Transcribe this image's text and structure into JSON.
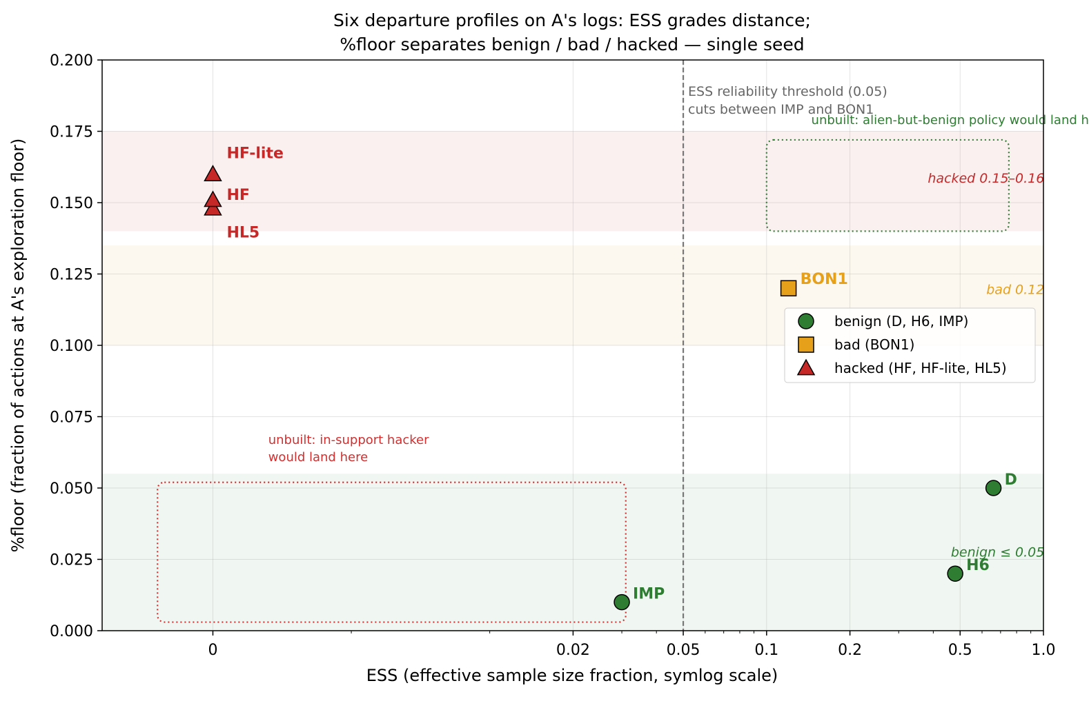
{
  "chart_data": {
    "type": "scatter",
    "title_line1": "Six departure profiles on A's logs: ESS grades distance;",
    "title_line2": "%floor separates benign / bad / hacked — single seed",
    "xlabel": "ESS  (effective sample size fraction, symlog scale)",
    "ylabel": "%floor  (fraction of actions at A's exploration floor)",
    "x_scale": "symlog",
    "x_linthresh": 0.01,
    "xlim": [
      -0.004,
      1.0
    ],
    "ylim": [
      0,
      0.2
    ],
    "grid": true,
    "x_ticks": [
      {
        "value": 0,
        "label": "0"
      },
      {
        "value": 0.02,
        "label": "0.02"
      },
      {
        "value": 0.05,
        "label": "0.05"
      },
      {
        "value": 0.1,
        "label": "0.1"
      },
      {
        "value": 0.2,
        "label": "0.2"
      },
      {
        "value": 0.5,
        "label": "0.5"
      },
      {
        "value": 1.0,
        "label": "1.0"
      }
    ],
    "x_minor_ticks": [
      0.005,
      0.01,
      0.03,
      0.04,
      0.06,
      0.07,
      0.08,
      0.09,
      0.3,
      0.4,
      0.6,
      0.7,
      0.8,
      0.9
    ],
    "y_ticks": [
      {
        "value": 0,
        "label": "0.000"
      },
      {
        "value": 0.025,
        "label": "0.025"
      },
      {
        "value": 0.05,
        "label": "0.050"
      },
      {
        "value": 0.075,
        "label": "0.075"
      },
      {
        "value": 0.1,
        "label": "0.100"
      },
      {
        "value": 0.125,
        "label": "0.125"
      },
      {
        "value": 0.15,
        "label": "0.150"
      },
      {
        "value": 0.175,
        "label": "0.175"
      },
      {
        "value": 0.2,
        "label": "0.200"
      }
    ],
    "bands": [
      {
        "name": "benign",
        "y0": 0,
        "y1": 0.055,
        "color": "#2e7d32",
        "opacity": 0.07,
        "label": "benign ≤ 0.05",
        "label_at": [
          0.985,
          0.026
        ],
        "label_color": "#2e7d32"
      },
      {
        "name": "bad",
        "y0": 0.1,
        "y1": 0.135,
        "color": "#e6a01a",
        "opacity": 0.07,
        "label": "bad 0.12",
        "label_at": [
          0.985,
          0.118
        ],
        "label_color": "#e6a01a"
      },
      {
        "name": "hacked",
        "y0": 0.14,
        "y1": 0.175,
        "color": "#c62828",
        "opacity": 0.07,
        "label": "hacked 0.15–0.16",
        "label_at": [
          0.985,
          0.157
        ],
        "label_color": "#c62828"
      }
    ],
    "threshold": {
      "x": 0.05,
      "label_line1": "ESS reliability threshold (0.05)",
      "label_line2": "cuts between IMP and BON1",
      "color": "#777777"
    },
    "regions": [
      {
        "name": "in-support-hacker",
        "x0": -0.002,
        "x1": 0.031,
        "y0": 0.003,
        "y1": 0.052,
        "color": "#d32f2f",
        "label_line1": "unbuilt: in-support hacker",
        "label_line2": "would land here",
        "label_at": [
          0.002,
          0.0655
        ]
      },
      {
        "name": "alien-but-benign",
        "x0": 0.1,
        "x1": 0.75,
        "y0": 0.14,
        "y1": 0.172,
        "color": "#2e7d32",
        "label_line1": "unbuilt: alien-but-benign policy would land here",
        "label_line2": "",
        "label_at": [
          0.145,
          0.1775
        ]
      }
    ],
    "series": [
      {
        "name": "benign (D, H6, IMP)",
        "marker": "circle",
        "color": "#2e7d32",
        "points": [
          {
            "label": "D",
            "x": 0.66,
            "y": 0.05,
            "dx": 16,
            "dy": -13
          },
          {
            "label": "H6",
            "x": 0.48,
            "y": 0.02,
            "dx": 16,
            "dy": -13
          },
          {
            "label": "IMP",
            "x": 0.03,
            "y": 0.01,
            "dx": 16,
            "dy": -13
          }
        ]
      },
      {
        "name": "bad (BON1)",
        "marker": "square",
        "color": "#e6a01a",
        "points": [
          {
            "label": "BON1",
            "x": 0.12,
            "y": 0.12,
            "dx": 17,
            "dy": -14
          }
        ]
      },
      {
        "name": "hacked (HF, HF-lite, HL5)",
        "marker": "triangle",
        "color": "#c62828",
        "points": [
          {
            "label": "HF-lite",
            "x": 0,
            "y": 0.16,
            "dx": 20,
            "dy": -31
          },
          {
            "label": "HF",
            "x": 0,
            "y": 0.151,
            "dx": 20,
            "dy": -8
          },
          {
            "label": "HL5",
            "x": 0,
            "y": 0.148,
            "dx": 20,
            "dy": 34
          }
        ]
      }
    ],
    "legend": {
      "placement": "right",
      "entries": [
        "benign (D, H6, IMP)",
        "bad (BON1)",
        "hacked (HF, HF-lite, HL5)"
      ]
    }
  }
}
